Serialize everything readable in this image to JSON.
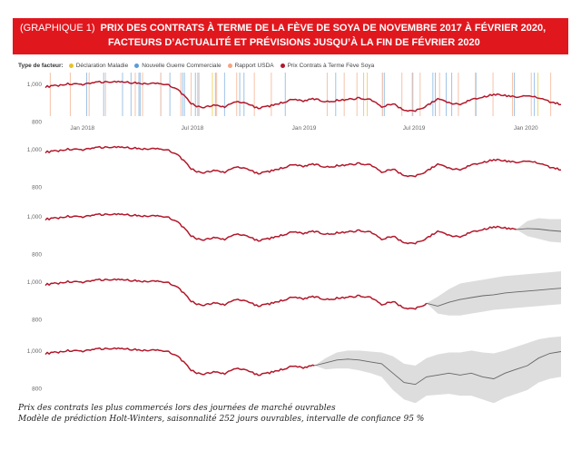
{
  "header": {
    "label": "(GRAPHIQUE 1)",
    "title_line1": "PRIX DES CONTRATS À TERME DE LA FÈVE DE SOYA DE NOVEMBRE 2017 À FÉVRIER 2020,",
    "title_line2": "FACTEURS D’ACTUALITÉ ET PRÉVISIONS JUSQU’À LA FIN DE FÉVRIER 2020"
  },
  "legend": {
    "header": "Type de facteur:",
    "items": [
      {
        "label": "Déclaration Maladie",
        "color": "#e6c229"
      },
      {
        "label": "Nouvelle Guerre Commerciale",
        "color": "#5b9bd5"
      },
      {
        "label": "Rapport USDA",
        "color": "#f4a582"
      },
      {
        "label": "Prix Contrats à Terme Fève Soya",
        "color": "#b2182b"
      }
    ]
  },
  "footer": {
    "line1": "Prix des contrats les plus commercés lors des journées de marché ouvrables",
    "line2": "Modèle de prédiction Holt-Winters, saisonnalité 252 jours ouvrables, intervalle de confiance 95 %"
  },
  "chart_data": [
    {
      "type": "line",
      "x_start": "2017-11-01",
      "x_end": "2020-02-28",
      "x_tick_labels": [
        "Jan 2018",
        "Jul 2018",
        "Jan 2019",
        "Jul 2019",
        "Jan 2020"
      ],
      "y_tick_labels": [
        "1,000",
        "800"
      ],
      "ylim": [
        780,
        1060
      ],
      "series": [
        {
          "name": "Prix Contrats à Terme Fève Soya",
          "color": "#b2182b",
          "values": [
            985,
            990,
            1000,
            995,
            1005,
            1010,
            1012,
            1008,
            1006,
            1000,
            1003,
            996,
            960,
            895,
            870,
            888,
            878,
            905,
            895,
            870,
            882,
            898,
            915,
            910,
            920,
            905,
            912,
            918,
            925,
            916,
            880,
            895,
            860,
            855,
            885,
            918,
            900,
            890,
            920,
            928,
            946,
            938,
            930,
            936,
            925,
            905,
            890
          ]
        }
      ],
      "event_lines": {
        "blue": [
          "2018-01-08",
          "2018-02-05",
          "2018-03-08",
          "2018-03-22",
          "2018-04-04",
          "2018-04-06",
          "2018-05-10",
          "2018-05-25",
          "2018-06-15",
          "2018-06-18",
          "2018-07-06",
          "2018-07-10",
          "2018-08-08",
          "2018-08-23",
          "2018-09-17",
          "2018-09-24",
          "2018-12-01",
          "2019-02-22",
          "2019-05-10",
          "2019-05-13",
          "2019-06-29",
          "2019-08-01",
          "2019-08-05",
          "2019-08-23",
          "2019-09-01",
          "2019-10-11",
          "2019-12-13",
          "2020-01-15"
        ],
        "orange": [
          "2017-11-09",
          "2017-12-12",
          "2018-01-12",
          "2018-02-08",
          "2018-03-29",
          "2018-04-10",
          "2018-05-10",
          "2018-06-12",
          "2018-06-29",
          "2018-07-12",
          "2018-08-10",
          "2018-09-12",
          "2018-10-11",
          "2018-11-08",
          "2019-02-08",
          "2019-03-08",
          "2019-03-29",
          "2019-04-09",
          "2019-05-10",
          "2019-06-11",
          "2019-06-28",
          "2019-07-11",
          "2019-08-12",
          "2019-09-12",
          "2019-10-10",
          "2019-11-08",
          "2019-12-10",
          "2020-01-10",
          "2020-02-11"
        ],
        "yellow": [
          "2018-08-03",
          "2019-04-15",
          "2020-01-21"
        ]
      }
    },
    {
      "type": "line",
      "y_tick_labels": [
        "1,000",
        "800"
      ],
      "ylim": [
        780,
        1060
      ],
      "series": [
        {
          "name": "Prix Contrats à Terme Fève Soya",
          "color": "#b2182b",
          "values": [
            985,
            990,
            1000,
            995,
            1005,
            1010,
            1012,
            1008,
            1006,
            1000,
            1003,
            996,
            960,
            895,
            870,
            888,
            878,
            905,
            895,
            870,
            882,
            898,
            915,
            910,
            920,
            905,
            912,
            918,
            925,
            916,
            880,
            895,
            860,
            855,
            885,
            918,
            900,
            890,
            920,
            928,
            946,
            938,
            930,
            936,
            925,
            905,
            890
          ]
        }
      ]
    },
    {
      "type": "line",
      "y_tick_labels": [
        "1,000",
        "800"
      ],
      "ylim": [
        780,
        1060
      ],
      "series": [
        {
          "name": "Prix Contrats à Terme Fève Soya",
          "color": "#b2182b",
          "values": [
            985,
            990,
            1000,
            995,
            1005,
            1010,
            1012,
            1008,
            1006,
            1000,
            1003,
            996,
            960,
            895,
            870,
            888,
            878,
            905,
            895,
            870,
            882,
            898,
            915,
            910,
            920,
            905,
            912,
            918,
            925,
            916,
            880,
            895,
            860,
            855,
            885,
            918,
            900,
            890,
            920,
            928,
            946,
            938,
            930
          ]
        },
        {
          "color": "#666666",
          "values": [
            930,
            935,
            932,
            925,
            920
          ]
        }
      ],
      "forecast_band": {
        "upper": [
          930,
          975,
          990,
          985,
          985
        ],
        "lower": [
          930,
          895,
          880,
          865,
          860
        ],
        "color": "#d9d9d9"
      }
    },
    {
      "type": "line",
      "y_tick_labels": [
        "1,000",
        "800"
      ],
      "ylim": [
        780,
        1060
      ],
      "series": [
        {
          "name": "Prix Contrats à Terme Fève Soya",
          "color": "#b2182b",
          "values": [
            985,
            990,
            1000,
            995,
            1005,
            1010,
            1012,
            1008,
            1006,
            1000,
            1003,
            996,
            960,
            895,
            870,
            888,
            878,
            905,
            895,
            870,
            882,
            898,
            915,
            910,
            920,
            905,
            912,
            918,
            925,
            916,
            880,
            895,
            860,
            855,
            885
          ]
        },
        {
          "color": "#666666",
          "values": [
            885,
            870,
            890,
            905,
            915,
            925,
            930,
            940,
            945,
            950,
            955,
            960,
            965
          ]
        }
      ],
      "forecast_band": {
        "upper": [
          885,
          920,
          960,
          990,
          1000,
          1010,
          1020,
          1030,
          1035,
          1040,
          1045,
          1050,
          1055
        ],
        "lower": [
          885,
          830,
          820,
          820,
          830,
          840,
          850,
          855,
          860,
          865,
          870,
          875,
          880
        ],
        "color": "#d9d9d9"
      }
    },
    {
      "type": "line",
      "y_tick_labels": [
        "1,000",
        "800"
      ],
      "ylim": [
        780,
        1060
      ],
      "series": [
        {
          "name": "Prix Contrats à Terme Fève Soya",
          "color": "#b2182b",
          "values": [
            985,
            990,
            1000,
            995,
            1005,
            1010,
            1012,
            1008,
            1006,
            1000,
            1003,
            996,
            960,
            895,
            870,
            888,
            878,
            905,
            895,
            870,
            882,
            898,
            915,
            910,
            920
          ]
        },
        {
          "color": "#666666",
          "values": [
            920,
            935,
            950,
            955,
            950,
            940,
            930,
            880,
            830,
            820,
            860,
            870,
            880,
            870,
            880,
            860,
            850,
            880,
            900,
            920,
            960,
            985,
            995
          ]
        }
      ],
      "forecast_band": {
        "upper": [
          920,
          960,
          990,
          1000,
          1000,
          995,
          990,
          970,
          930,
          920,
          960,
          980,
          990,
          990,
          1000,
          990,
          985,
          1000,
          1020,
          1040,
          1060,
          1070,
          1075
        ],
        "lower": [
          920,
          900,
          905,
          905,
          895,
          880,
          860,
          790,
          740,
          720,
          760,
          765,
          770,
          760,
          760,
          740,
          720,
          750,
          770,
          790,
          830,
          850,
          860
        ],
        "color": "#d9d9d9"
      }
    }
  ]
}
